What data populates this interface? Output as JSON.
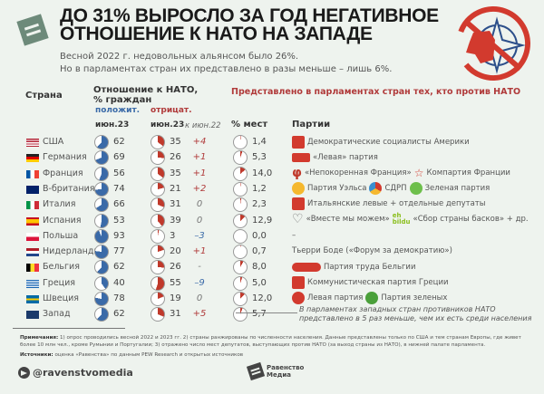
{
  "header": {
    "title_line1": "ДО 31% ВЫРОСЛО ЗА ГОД НЕГАТИВНОЕ",
    "title_line2": "ОТНОШЕНИЕ К НАТО НА ЗАПАДЕ",
    "subtitle_line1": "Весной 2022 г. недовольных альянсом было 26%.",
    "subtitle_line2": "Но в парламентах стран их представлено в разы меньше – лишь 6%."
  },
  "columns": {
    "country": "Страна",
    "attitude_line1": "Отношение к НАТО,",
    "attitude_line2": "% граждан",
    "positive": "положит.",
    "negative": "отрицат.",
    "pos_date": "июн.23",
    "neg_date": "июн.23",
    "change": "к июн.22",
    "seats": "% мест",
    "represented": "Представлено в парламентах стран тех, кто против НАТО",
    "parties": "Партии"
  },
  "colors": {
    "positive": "#3a6aa8",
    "negative": "#c0392b",
    "background": "#eef3ee"
  },
  "chart_data": {
    "type": "table",
    "title": "ДО 31% ВЫРОСЛО ЗА ГОД НЕГАТИВНОЕ ОТНОШЕНИЕ К НАТО НА ЗАПАДЕ",
    "columns": [
      "Страна",
      "положит. июн.23",
      "отрицат. июн.23",
      "к июн.22",
      "% мест"
    ],
    "rows": [
      {
        "country": "США",
        "positive": 62,
        "negative": 35,
        "change": "+4",
        "seats": "1,4"
      },
      {
        "country": "Германия",
        "positive": 69,
        "negative": 26,
        "change": "+1",
        "seats": "5,3"
      },
      {
        "country": "Франция",
        "positive": 56,
        "negative": 35,
        "change": "+1",
        "seats": "14,0"
      },
      {
        "country": "В-британия",
        "positive": 74,
        "negative": 21,
        "change": "+2",
        "seats": "1,2"
      },
      {
        "country": "Италия",
        "positive": 66,
        "negative": 31,
        "change": "0",
        "seats": "2,3"
      },
      {
        "country": "Испания",
        "positive": 53,
        "negative": 39,
        "change": "0",
        "seats": "12,9"
      },
      {
        "country": "Польша",
        "positive": 93,
        "negative": 3,
        "change": "–3",
        "seats": "0,0"
      },
      {
        "country": "Нидерланды",
        "positive": 77,
        "negative": 20,
        "change": "+1",
        "seats": "0,7"
      },
      {
        "country": "Бельгия",
        "positive": 62,
        "negative": 26,
        "change": "-",
        "seats": "8,0"
      },
      {
        "country": "Греция",
        "positive": 40,
        "negative": 55,
        "change": "–9",
        "seats": "5,0"
      },
      {
        "country": "Швеция",
        "positive": 78,
        "negative": 19,
        "change": "0",
        "seats": "12,0"
      },
      {
        "country": "Запад",
        "positive": 62,
        "negative": 31,
        "change": "+5",
        "seats": "5,7"
      }
    ]
  },
  "rows": [
    {
      "country": "США",
      "positive": "62",
      "negative": "35",
      "change": "+4",
      "seats": "1,4"
    },
    {
      "country": "Германия",
      "positive": "69",
      "negative": "26",
      "change": "+1",
      "seats": "5,3"
    },
    {
      "country": "Франция",
      "positive": "56",
      "negative": "35",
      "change": "+1",
      "seats": "14,0"
    },
    {
      "country": "В-британия",
      "positive": "74",
      "negative": "21",
      "change": "+2",
      "seats": "1,2"
    },
    {
      "country": "Италия",
      "positive": "66",
      "negative": "31",
      "change": "0",
      "seats": "2,3"
    },
    {
      "country": "Испания",
      "positive": "53",
      "negative": "39",
      "change": "0",
      "seats": "12,9"
    },
    {
      "country": "Польша",
      "positive": "93",
      "negative": "3",
      "change": "–3",
      "seats": "0,0"
    },
    {
      "country": "Нидерланды",
      "positive": "77",
      "negative": "20",
      "change": "+1",
      "seats": "0,7"
    },
    {
      "country": "Бельгия",
      "positive": "62",
      "negative": "26",
      "change": "-",
      "seats": "8,0"
    },
    {
      "country": "Греция",
      "positive": "40",
      "negative": "55",
      "change": "–9",
      "seats": "5,0"
    },
    {
      "country": "Швеция",
      "positive": "78",
      "negative": "19",
      "change": "0",
      "seats": "12,0"
    },
    {
      "country": "Запад",
      "positive": "62",
      "negative": "31",
      "change": "+5",
      "seats": "5,7"
    }
  ],
  "parties": {
    "usa": "Демократические социалисты Америки",
    "germany": "«Левая» партия",
    "france_1": "«Непокоренная Франция»",
    "france_2": "Компартия Франции",
    "uk_1": "Партия Уэльса",
    "uk_2": "СДРП",
    "uk_3": "Зеленая партия",
    "italy": "Итальянские левые + отдельные депутаты",
    "spain_1": "«Вместе мы можем»",
    "spain_2": "«Сбор страны басков» + др.",
    "poland": "–",
    "netherlands": "Тьерри Боде («Форум за демократию»)",
    "belgium": "Партия труда Бельгии",
    "greece": "Коммунистическая партия Греции",
    "sweden_1": "Левая партия",
    "sweden_2": "Партия зеленых"
  },
  "callout": {
    "line1": "В парламентах западных стран противников НАТО",
    "line2": "представлено в 5 раз меньше, чем их есть среди населения"
  },
  "notes": {
    "label": "Примечания:",
    "text": " 1) опрос проводились весной 2022 и 2023 гг. 2) страны ранжированы по численности населения. Данные представлены только по США и тем странам Европы, где живет более 10 млн чел., кроме Румынии и Португалии; 3) отражено число мест депутатов, выступающих против НАТО (за выход страны из НАТО), в нижней палате парламента."
  },
  "sources": {
    "label": "Источники:",
    "text": " оценка «Равенства» по данным PEW Research и открытых источников"
  },
  "footer": {
    "telegram": "@ravenstvomedia",
    "brand_line1": "Равенство",
    "brand_line2": "Медиа"
  }
}
